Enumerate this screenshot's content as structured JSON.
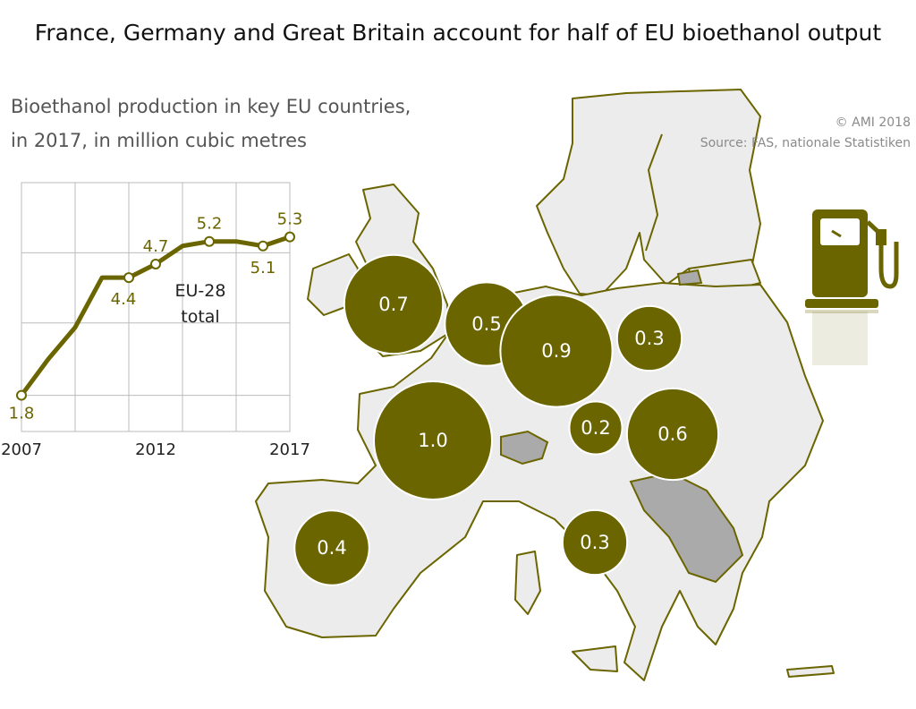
{
  "header": {
    "title": "France, Germany and Great Britain account for half of EU bioethanol output",
    "subtitle_line1": "Bioethanol production in key EU countries,",
    "subtitle_line2": "in 2017, in million cubic metres"
  },
  "credits": {
    "copyright": "© AMI 2018",
    "source": "Source: FAS, nationale Statistiken"
  },
  "colors": {
    "accent": "#6b6500",
    "map_fill": "#ececec",
    "border": "#6b6500",
    "non_eu": "#aaaaaa"
  },
  "icon": "fuel-pump-icon",
  "chart_data": [
    {
      "type": "line",
      "title": "",
      "annotation": [
        "EU-28",
        "total"
      ],
      "x": [
        2007,
        2008,
        2009,
        2010,
        2011,
        2012,
        2013,
        2014,
        2015,
        2016,
        2017
      ],
      "series": [
        {
          "values": [
            1.8,
            2.6,
            3.3,
            4.4,
            4.4,
            4.7,
            5.1,
            5.2,
            5.2,
            5.1,
            5.3
          ]
        }
      ],
      "data_labels": [
        {
          "x": 2007,
          "label": "1.8"
        },
        {
          "x": 2011,
          "label": "4.4"
        },
        {
          "x": 2012,
          "label": "4.7"
        },
        {
          "x": 2014,
          "label": "5.2"
        },
        {
          "x": 2016,
          "label": "5.1"
        },
        {
          "x": 2017,
          "label": "5.3"
        }
      ],
      "x_tick_labels": [
        "2007",
        "2012",
        "2017"
      ],
      "grid": true
    },
    {
      "type": "bubble-map",
      "regions": [
        {
          "name": "United Kingdom",
          "label": "0.7",
          "value": 0.7
        },
        {
          "name": "Benelux",
          "label": "0.5",
          "value": 0.5
        },
        {
          "name": "Germany",
          "label": "0.9",
          "value": 0.9
        },
        {
          "name": "Poland",
          "label": "0.3",
          "value": 0.3
        },
        {
          "name": "France",
          "label": "1.0",
          "value": 1.0
        },
        {
          "name": "Austria",
          "label": "0.2",
          "value": 0.2
        },
        {
          "name": "Hungary",
          "label": "0.6",
          "value": 0.6
        },
        {
          "name": "Spain",
          "label": "0.4",
          "value": 0.4
        },
        {
          "name": "Italy",
          "label": "0.3",
          "value": 0.3
        }
      ]
    }
  ]
}
